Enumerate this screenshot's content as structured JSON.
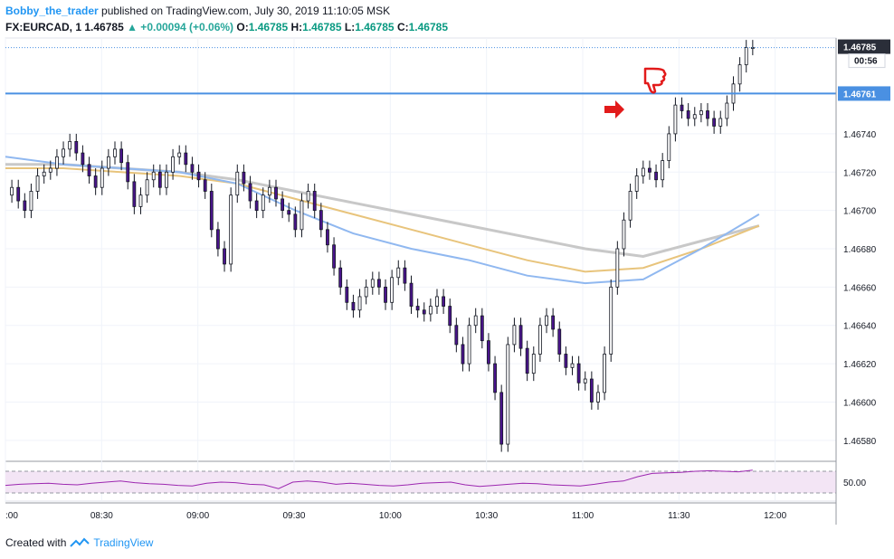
{
  "header": {
    "author": "Bobby_the_trader",
    "published_text": "published on TradingView.com, July 30, 2019 11:10:05 MSK"
  },
  "quote": {
    "symbol": "FX:EURCAD, 1",
    "last": "1.46785",
    "change": "▲ +0.00094 (+0.06%)",
    "o_label": "O:",
    "o_val": "1.46785",
    "h_label": "H:",
    "h_val": "1.46785",
    "l_label": "L:",
    "l_val": "1.46785",
    "c_label": "C:",
    "c_val": "1.46785"
  },
  "footer": {
    "created_with": "Created with",
    "brand": "TradingView"
  },
  "colors": {
    "candle_body": "#4a148c",
    "line_blue": "#4a90e2",
    "ma_gold": "#e8c47c",
    "ma_gray": "#c8c8c8",
    "ma_lightblue": "#90b8f0",
    "rsi_line": "#9c27b0",
    "rsi_fill": "#f3e5f5",
    "price_tag_dark": "#2a2e39",
    "price_tag_blue": "#4a90e2",
    "annotation_red": "#e21b1b"
  },
  "chart_data": {
    "type": "candlestick",
    "title": "",
    "xlabel": "",
    "ylabel": "",
    "y_ticks": [
      "1.46740",
      "1.46720",
      "1.46700",
      "1.46680",
      "1.46660",
      "1.46640",
      "1.46620",
      "1.46600",
      "1.46580"
    ],
    "x_ticks": [
      ":00",
      "08:30",
      "09:00",
      "09:30",
      "10:00",
      "10:30",
      "11:00",
      "11:30",
      "12:00"
    ],
    "x_tick_minutes": [
      480,
      510,
      540,
      570,
      600,
      630,
      660,
      690,
      720
    ],
    "ylim": [
      1.4657,
      1.4679
    ],
    "xlim_minutes": [
      480,
      739
    ],
    "last_price_label": "1.46785",
    "countdown_label": "00:56",
    "horizontal_line_label": "1.46761",
    "horizontal_line_price": 1.46761,
    "last_price": 1.46785,
    "rsi": {
      "label": "50.00",
      "upper_band": 70,
      "lower_band": 30,
      "level": 50
    },
    "candles_close": [
      1.46712,
      1.46705,
      1.467,
      1.4671,
      1.46718,
      1.4672,
      1.46722,
      1.46728,
      1.46732,
      1.46736,
      1.4673,
      1.46724,
      1.46718,
      1.46712,
      1.46722,
      1.46728,
      1.46732,
      1.46725,
      1.46715,
      1.46702,
      1.46708,
      1.46716,
      1.4672,
      1.46712,
      1.4672,
      1.46728,
      1.4673,
      1.46724,
      1.4672,
      1.46716,
      1.4671,
      1.4669,
      1.4668,
      1.46672,
      1.46708,
      1.4672,
      1.46714,
      1.46705,
      1.467,
      1.46708,
      1.46712,
      1.46706,
      1.467,
      1.46698,
      1.4669,
      1.46705,
      1.4671,
      1.467,
      1.4669,
      1.46682,
      1.4667,
      1.4666,
      1.46652,
      1.46648,
      1.46655,
      1.4666,
      1.46664,
      1.4666,
      1.46652,
      1.46665,
      1.4667,
      1.46662,
      1.4665,
      1.46648,
      1.46646,
      1.4665,
      1.46655,
      1.4665,
      1.4664,
      1.4663,
      1.4662,
      1.4664,
      1.46645,
      1.46632,
      1.4662,
      1.46605,
      1.46578,
      1.4663,
      1.4664,
      1.46628,
      1.46615,
      1.46625,
      1.4664,
      1.46645,
      1.46638,
      1.46625,
      1.46618,
      1.4662,
      1.4661,
      1.46612,
      1.466,
      1.46605,
      1.46625,
      1.4666,
      1.4668,
      1.46695,
      1.4671,
      1.46718,
      1.46722,
      1.4672,
      1.46716,
      1.46726,
      1.4674,
      1.46755,
      1.46752,
      1.46748,
      1.4675,
      1.46752,
      1.46748,
      1.46744,
      1.46748,
      1.46756,
      1.46766,
      1.46776,
      1.46785,
      1.46785
    ],
    "ma_gold": [
      1.46722,
      1.46722,
      1.4672,
      1.46718,
      1.46714,
      1.46706,
      1.46698,
      1.4669,
      1.46682,
      1.46674,
      1.46668,
      1.4667,
      1.4668,
      1.46692
    ],
    "ma_gray": [
      1.46724,
      1.46724,
      1.46722,
      1.4672,
      1.46716,
      1.4671,
      1.46704,
      1.46698,
      1.46692,
      1.46686,
      1.4668,
      1.46676,
      1.46684,
      1.46692
    ],
    "ma_lightblue": [
      1.46728,
      1.46724,
      1.46722,
      1.4672,
      1.46714,
      1.467,
      1.46688,
      1.4668,
      1.46674,
      1.46666,
      1.46662,
      1.46664,
      1.4668,
      1.46698
    ],
    "rsi_values": [
      44,
      46,
      47,
      48,
      46,
      45,
      48,
      50,
      52,
      49,
      47,
      46,
      44,
      43,
      48,
      50,
      49,
      46,
      45,
      38,
      50,
      52,
      50,
      46,
      48,
      46,
      44,
      43,
      45,
      48,
      49,
      50,
      45,
      42,
      44,
      46,
      48,
      47,
      45,
      44,
      43,
      46,
      50,
      52,
      60,
      66,
      67,
      68,
      70,
      71,
      70,
      69,
      72
    ]
  }
}
